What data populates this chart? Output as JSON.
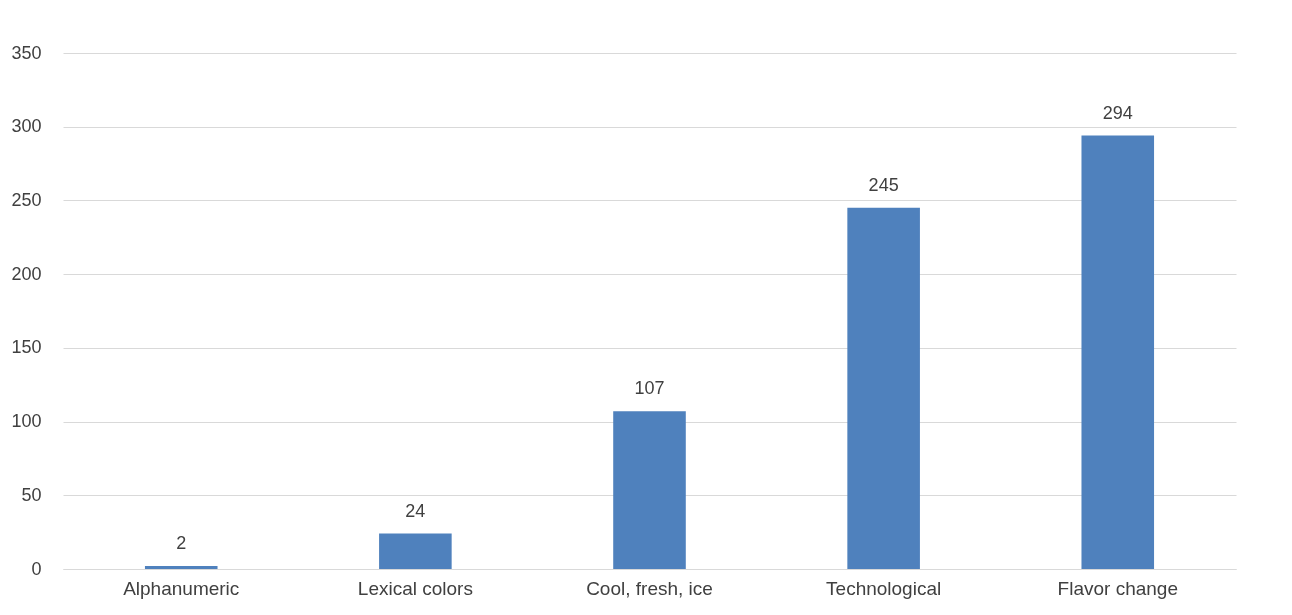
{
  "chart_data": {
    "type": "bar",
    "categories": [
      "Alphanumeric",
      "Lexical colors",
      "Cool, fresh, ice",
      "Technological",
      "Flavor change"
    ],
    "values": [
      2,
      24,
      107,
      245,
      294
    ],
    "color": "#4f81bd",
    "ylim": [
      0,
      350
    ],
    "yticks": [
      0,
      50,
      100,
      150,
      200,
      250,
      300,
      350
    ],
    "grid": "y",
    "data_labels": true
  }
}
